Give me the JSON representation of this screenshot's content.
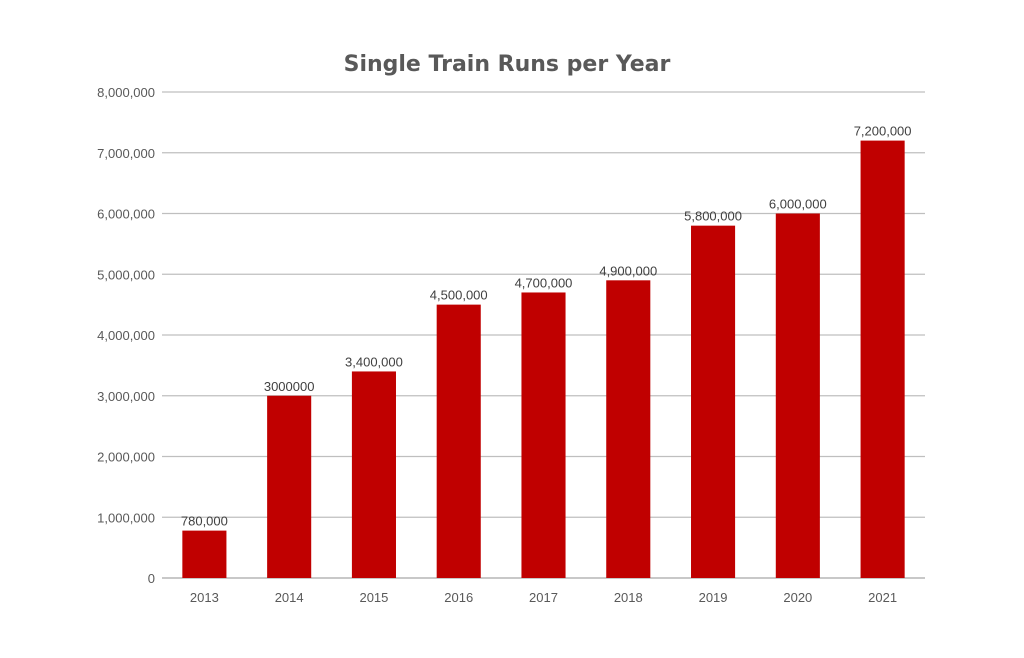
{
  "chart_data": {
    "type": "bar",
    "title": "Single Train Runs per Year",
    "xlabel": "",
    "ylabel": "",
    "categories": [
      "2013",
      "2014",
      "2015",
      "2016",
      "2017",
      "2018",
      "2019",
      "2020",
      "2021"
    ],
    "values": [
      780000,
      3000000,
      3400000,
      4500000,
      4700000,
      4900000,
      5800000,
      6000000,
      7200000
    ],
    "data_labels": [
      "780,000",
      "3000000",
      "3,400,000",
      "4,500,000",
      "4,700,000",
      "4,900,000",
      "5,800,000",
      "6,000,000",
      "7,200,000"
    ],
    "ylim": [
      0,
      8000000
    ],
    "y_ticks": [
      0,
      1000000,
      2000000,
      3000000,
      4000000,
      5000000,
      6000000,
      7000000,
      8000000
    ],
    "y_tick_labels": [
      "0",
      "1,000,000",
      "2,000,000",
      "3,000,000",
      "4,000,000",
      "5,000,000",
      "6,000,000",
      "7,000,000",
      "8,000,000"
    ],
    "grid": true,
    "legend": "none",
    "bar_color": "#c00000"
  }
}
